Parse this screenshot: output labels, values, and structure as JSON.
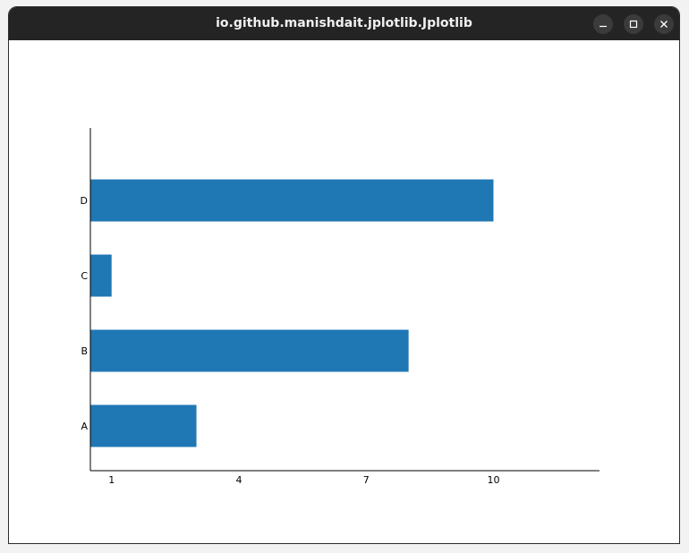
{
  "window": {
    "title": "io.github.manishdait.jplotlib.Jplotlib",
    "buttons": {
      "minimize": "minimize-icon",
      "maximize": "maximize-icon",
      "close": "close-icon"
    }
  },
  "chart_data": {
    "type": "bar",
    "orientation": "horizontal",
    "categories": [
      "A",
      "B",
      "C",
      "D"
    ],
    "values": [
      3,
      8,
      1,
      10
    ],
    "title": "",
    "xlabel": "",
    "ylabel": "",
    "xticks": [
      1,
      4,
      7,
      10
    ],
    "xlim": [
      0.5,
      12.5
    ],
    "bar_color": "#1f77b4",
    "grid": false,
    "legend": "none"
  }
}
